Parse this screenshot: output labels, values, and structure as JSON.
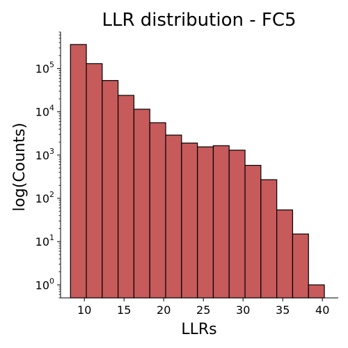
{
  "chart_data": {
    "type": "bar",
    "title": "LLR distribution - FC5",
    "xlabel": "LLRs",
    "ylabel": "log(Counts)",
    "y_scale": "log",
    "xlim": [
      7.0,
      42.0
    ],
    "ylim": [
      0.5,
      700000
    ],
    "bin_width": 2.0,
    "bin_starts": [
      8.25,
      10.25,
      12.25,
      14.25,
      16.25,
      18.25,
      20.25,
      22.25,
      24.25,
      26.25,
      28.25,
      30.25,
      32.25,
      34.25,
      36.25,
      38.25
    ],
    "values": [
      360000,
      130000,
      53000,
      24000,
      11500,
      5600,
      2900,
      1900,
      1550,
      1650,
      1300,
      580,
      270,
      54,
      15,
      1
    ],
    "x_ticks": [
      10,
      15,
      20,
      25,
      30,
      35,
      40
    ],
    "x_tick_labels": [
      "10",
      "15",
      "20",
      "25",
      "30",
      "35",
      "40"
    ],
    "y_ticks": [
      1,
      10,
      100,
      1000,
      10000,
      100000
    ],
    "y_tick_base": "10",
    "y_tick_exponents": [
      "0",
      "1",
      "2",
      "3",
      "4",
      "5"
    ],
    "bar_color": "#c75a5a",
    "edge_color": "#000000",
    "grid": false,
    "legend": "none"
  }
}
